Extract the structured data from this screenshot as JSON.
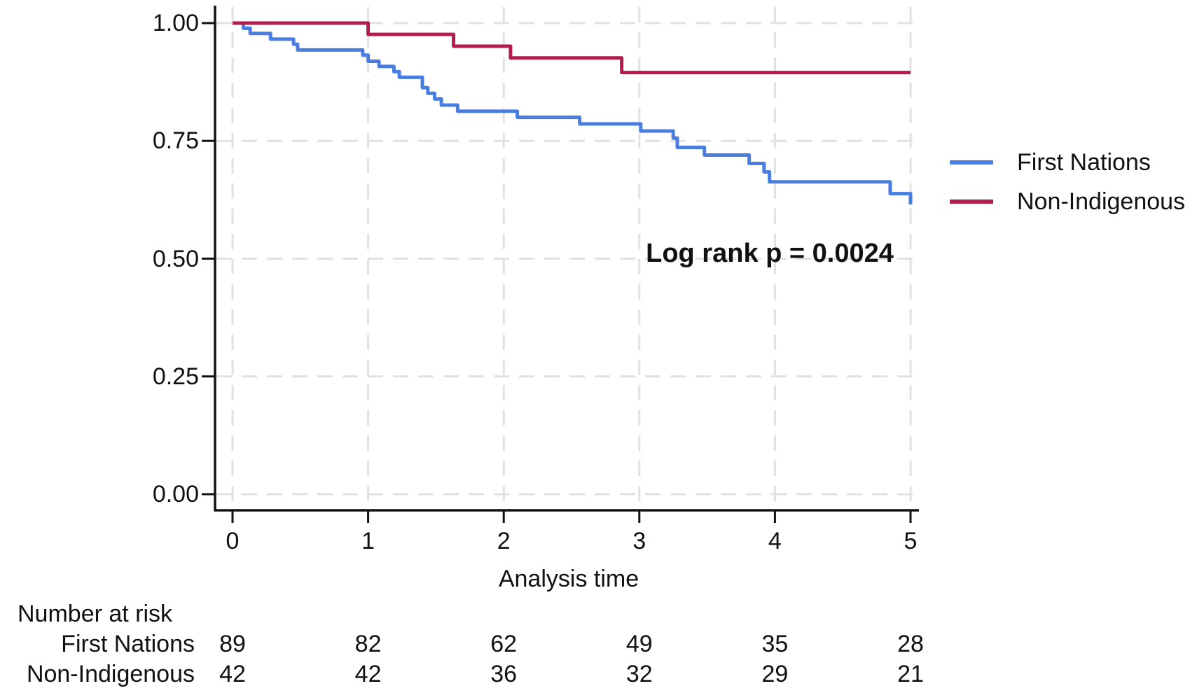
{
  "colors": {
    "first_nations": "#4a7de0",
    "non_indigenous": "#b11d4e",
    "gridline": "#e1e1e1",
    "axis": "#111111",
    "text": "#111111"
  },
  "chart_data": {
    "type": "line",
    "subtype": "kaplan-meier-step",
    "title": "",
    "xlabel": "Analysis time",
    "ylabel": "",
    "xlim": [
      0,
      5
    ],
    "ylim": [
      0,
      1
    ],
    "x_ticks": [
      0,
      1,
      2,
      3,
      4,
      5
    ],
    "x_tick_labels": [
      "0",
      "1",
      "2",
      "3",
      "4",
      "5"
    ],
    "y_ticks": [
      0,
      0.25,
      0.5,
      0.75,
      1
    ],
    "y_tick_labels": [
      "0.00",
      "0.25",
      "0.50",
      "0.75",
      "1.00"
    ],
    "grid": "dashed, both axes",
    "legend_position": "right",
    "annotation": "Log rank p = 0.0024",
    "series": [
      {
        "name": "First Nations",
        "color": "#4a7de0",
        "points": [
          [
            0,
            1.0
          ],
          [
            0.08,
            0.989
          ],
          [
            0.13,
            0.978
          ],
          [
            0.28,
            0.966
          ],
          [
            0.45,
            0.955
          ],
          [
            0.48,
            0.943
          ],
          [
            0.96,
            0.932
          ],
          [
            1.0,
            0.919
          ],
          [
            1.08,
            0.908
          ],
          [
            1.19,
            0.897
          ],
          [
            1.23,
            0.885
          ],
          [
            1.4,
            0.863
          ],
          [
            1.44,
            0.851
          ],
          [
            1.49,
            0.839
          ],
          [
            1.54,
            0.826
          ],
          [
            1.66,
            0.813
          ],
          [
            2.1,
            0.8
          ],
          [
            2.56,
            0.786
          ],
          [
            3.01,
            0.771
          ],
          [
            3.25,
            0.756
          ],
          [
            3.28,
            0.736
          ],
          [
            3.48,
            0.72
          ],
          [
            3.81,
            0.702
          ],
          [
            3.92,
            0.684
          ],
          [
            3.96,
            0.663
          ],
          [
            4.85,
            0.638
          ],
          [
            5.0,
            0.615
          ]
        ]
      },
      {
        "name": "Non-Indigenous",
        "color": "#b11d4e",
        "points": [
          [
            0,
            1.0
          ],
          [
            1.0,
            0.976
          ],
          [
            1.63,
            0.951
          ],
          [
            2.05,
            0.926
          ],
          [
            2.87,
            0.895
          ],
          [
            5.0,
            0.895
          ]
        ]
      }
    ]
  },
  "risk_table": {
    "title": "Number at risk",
    "time_points": [
      0,
      1,
      2,
      3,
      4,
      5
    ],
    "rows": [
      {
        "label": "First Nations",
        "counts": [
          "89",
          "82",
          "62",
          "49",
          "35",
          "28"
        ]
      },
      {
        "label": "Non-Indigenous",
        "counts": [
          "42",
          "42",
          "36",
          "32",
          "29",
          "21"
        ]
      }
    ]
  }
}
